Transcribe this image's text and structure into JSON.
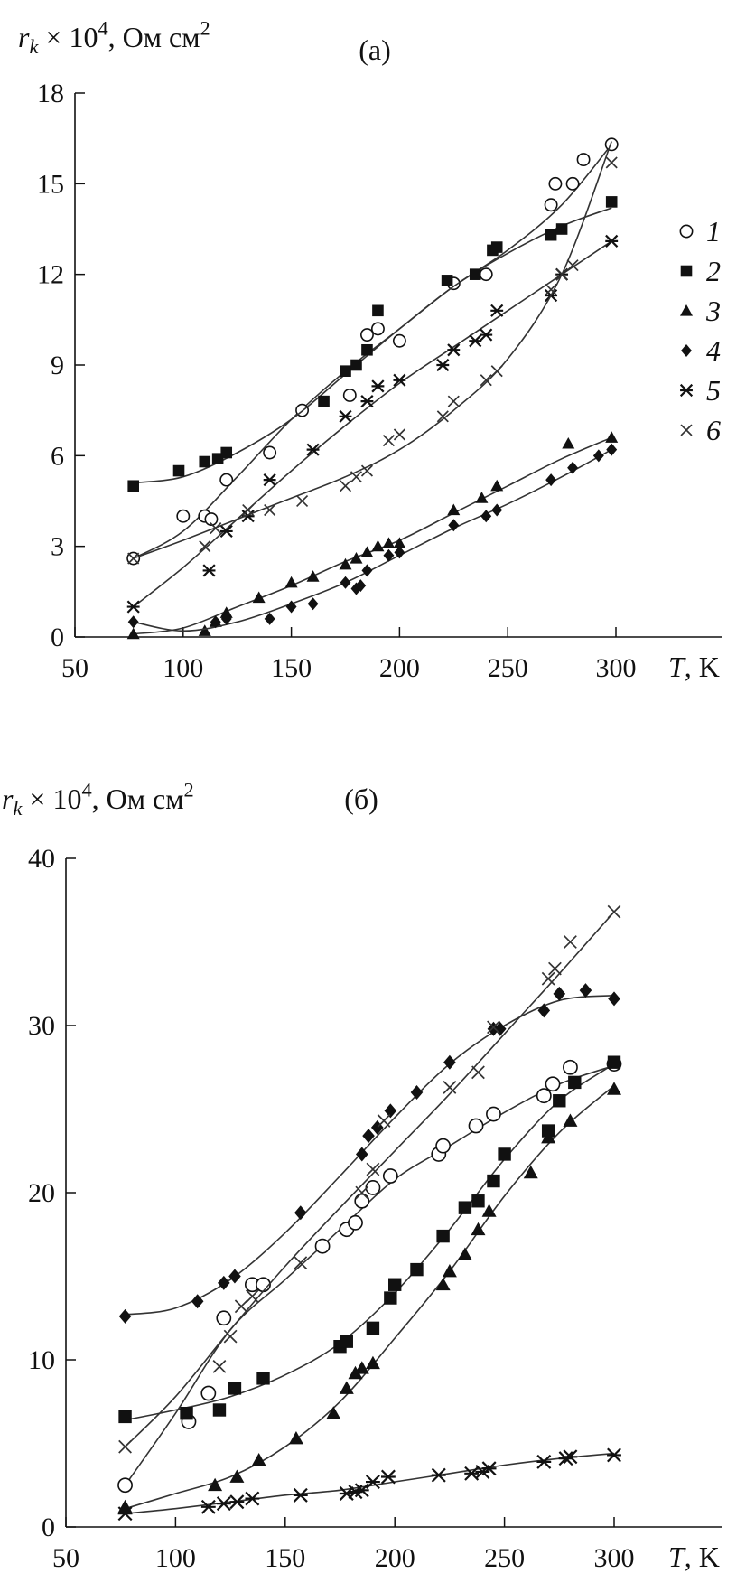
{
  "chart_data": [
    {
      "id": "a",
      "type": "scatter",
      "title": "(а)",
      "ylabel": "r_k × 10^4, Ом см^2",
      "ylabel_parts": {
        "var": "r",
        "sub": "k",
        "mid": " × 10",
        "sup": "4",
        "unit": ", Ом см",
        "unit_sup": "2"
      },
      "xlabel": "T, K",
      "xlabel_parts": {
        "var": "T",
        "rest": ", K"
      },
      "xlim": [
        50,
        350
      ],
      "ylim": [
        0,
        18
      ],
      "xticks": [
        50,
        100,
        150,
        200,
        250,
        300
      ],
      "yticks": [
        0,
        3,
        6,
        9,
        12,
        15,
        18
      ],
      "legend_position": "right",
      "series": [
        {
          "name": "1",
          "marker": "circle-open",
          "x": [
            77,
            100,
            110,
            113,
            120,
            140,
            155,
            177,
            185,
            190,
            200,
            225,
            240,
            270,
            272,
            280,
            285,
            298
          ],
          "y": [
            2.6,
            4.0,
            4.0,
            3.9,
            5.2,
            6.1,
            7.5,
            8.0,
            10.0,
            10.2,
            9.8,
            11.7,
            12.0,
            14.3,
            15.0,
            15.0,
            15.8,
            16.3
          ],
          "curve": [
            [
              77,
              2.6
            ],
            [
              100,
              3.5
            ],
            [
              125,
              5.3
            ],
            [
              150,
              7.2
            ],
            [
              175,
              8.8
            ],
            [
              200,
              10.2
            ],
            [
              225,
              11.6
            ],
            [
              250,
              12.8
            ],
            [
              275,
              14.3
            ],
            [
              298,
              16.3
            ]
          ]
        },
        {
          "name": "2",
          "marker": "square-filled",
          "x": [
            77,
            98,
            110,
            116,
            120,
            165,
            175,
            180,
            185,
            190,
            222,
            235,
            243,
            245,
            270,
            275,
            298
          ],
          "y": [
            5.0,
            5.5,
            5.8,
            5.9,
            6.1,
            7.8,
            8.8,
            9.0,
            9.5,
            10.8,
            11.8,
            12.0,
            12.8,
            12.9,
            13.3,
            13.5,
            14.4
          ],
          "curve": [
            [
              77,
              5.1
            ],
            [
              100,
              5.3
            ],
            [
              125,
              6.1
            ],
            [
              150,
              7.2
            ],
            [
              175,
              8.7
            ],
            [
              200,
              10.2
            ],
            [
              225,
              11.6
            ],
            [
              250,
              12.7
            ],
            [
              275,
              13.6
            ],
            [
              298,
              14.2
            ]
          ]
        },
        {
          "name": "3",
          "marker": "triangle-filled",
          "x": [
            77,
            110,
            115,
            120,
            135,
            150,
            160,
            175,
            180,
            185,
            190,
            195,
            200,
            225,
            238,
            245,
            278,
            298
          ],
          "y": [
            0.1,
            0.2,
            0.5,
            0.8,
            1.3,
            1.8,
            2.0,
            2.4,
            2.6,
            2.8,
            3.0,
            3.1,
            3.1,
            4.2,
            4.6,
            5.0,
            6.4,
            6.6
          ],
          "curve": [
            [
              77,
              0.1
            ],
            [
              100,
              0.3
            ],
            [
              125,
              1.0
            ],
            [
              150,
              1.7
            ],
            [
              175,
              2.5
            ],
            [
              200,
              3.2
            ],
            [
              225,
              4.1
            ],
            [
              250,
              5.0
            ],
            [
              275,
              5.9
            ],
            [
              298,
              6.6
            ]
          ]
        },
        {
          "name": "4",
          "marker": "diamond-filled",
          "x": [
            77,
            115,
            120,
            140,
            150,
            160,
            175,
            180,
            182,
            185,
            195,
            200,
            225,
            240,
            245,
            270,
            280,
            292,
            298
          ],
          "y": [
            0.5,
            0.5,
            0.6,
            0.6,
            1.0,
            1.1,
            1.8,
            1.6,
            1.7,
            2.2,
            2.7,
            2.8,
            3.7,
            4.0,
            4.2,
            5.2,
            5.6,
            6.0,
            6.2
          ],
          "curve": [
            [
              77,
              0.5
            ],
            [
              100,
              0.2
            ],
            [
              125,
              0.5
            ],
            [
              150,
              1.1
            ],
            [
              175,
              1.8
            ],
            [
              200,
              2.7
            ],
            [
              225,
              3.6
            ],
            [
              250,
              4.4
            ],
            [
              275,
              5.3
            ],
            [
              298,
              6.2
            ]
          ]
        },
        {
          "name": "5",
          "marker": "star",
          "x": [
            77,
            112,
            120,
            130,
            140,
            160,
            175,
            185,
            190,
            200,
            220,
            225,
            235,
            240,
            245,
            270,
            275,
            298
          ],
          "y": [
            1.0,
            2.2,
            3.5,
            4.0,
            5.2,
            6.2,
            7.3,
            7.8,
            8.3,
            8.5,
            9.0,
            9.5,
            9.8,
            10.0,
            10.8,
            11.3,
            12.0,
            13.1
          ],
          "curve": [
            [
              77,
              1.0
            ],
            [
              100,
              2.3
            ],
            [
              125,
              3.9
            ],
            [
              150,
              5.5
            ],
            [
              175,
              7.0
            ],
            [
              200,
              8.4
            ],
            [
              225,
              9.6
            ],
            [
              250,
              10.8
            ],
            [
              275,
              12.0
            ],
            [
              298,
              13.1
            ]
          ]
        },
        {
          "name": "6",
          "marker": "cross",
          "x": [
            77,
            110,
            115,
            130,
            140,
            155,
            175,
            180,
            185,
            195,
            200,
            220,
            225,
            240,
            245,
            270,
            275,
            280,
            298
          ],
          "y": [
            2.6,
            3.0,
            3.6,
            4.2,
            4.2,
            4.5,
            5.0,
            5.3,
            5.5,
            6.5,
            6.7,
            7.3,
            7.8,
            8.5,
            8.8,
            11.5,
            12.0,
            12.3,
            15.7
          ],
          "curve": [
            [
              77,
              2.6
            ],
            [
              100,
              3.2
            ],
            [
              125,
              3.9
            ],
            [
              150,
              4.6
            ],
            [
              175,
              5.3
            ],
            [
              200,
              6.2
            ],
            [
              225,
              7.5
            ],
            [
              250,
              9.2
            ],
            [
              275,
              12.0
            ],
            [
              298,
              16.4
            ]
          ]
        }
      ]
    },
    {
      "id": "b",
      "type": "scatter",
      "title": "(б)",
      "ylabel": "r_k × 10^4, Ом см^2",
      "ylabel_parts": {
        "var": "r",
        "sub": "k",
        "mid": " × 10",
        "sup": "4",
        "unit": ", Ом см",
        "unit_sup": "2"
      },
      "xlabel": "T, K",
      "xlabel_parts": {
        "var": "T",
        "rest": ", K"
      },
      "xlim": [
        50,
        350
      ],
      "ylim": [
        0,
        40
      ],
      "xticks": [
        50,
        100,
        150,
        200,
        250,
        300
      ],
      "yticks": [
        0,
        10,
        20,
        30,
        40
      ],
      "legend_position": "none",
      "series": [
        {
          "name": "1",
          "marker": "circle-open",
          "x": [
            77,
            106,
            115,
            122,
            135,
            140,
            167,
            178,
            182,
            185,
            190,
            198,
            220,
            222,
            237,
            245,
            268,
            272,
            280,
            300
          ],
          "y": [
            2.5,
            6.3,
            8.0,
            12.5,
            14.5,
            14.5,
            16.8,
            17.8,
            18.2,
            19.5,
            20.3,
            21.0,
            22.3,
            22.8,
            24.0,
            24.7,
            25.8,
            26.5,
            27.5,
            27.7
          ],
          "curve": [
            [
              77,
              2.5
            ],
            [
              100,
              6.8
            ],
            [
              125,
              11.8
            ],
            [
              150,
              14.8
            ],
            [
              175,
              17.8
            ],
            [
              200,
              20.8
            ],
            [
              225,
              22.8
            ],
            [
              250,
              24.8
            ],
            [
              275,
              26.5
            ],
            [
              300,
              27.6
            ]
          ]
        },
        {
          "name": "2",
          "marker": "square-filled",
          "x": [
            77,
            105,
            120,
            127,
            140,
            175,
            178,
            190,
            198,
            200,
            210,
            222,
            232,
            238,
            245,
            250,
            270,
            275,
            282,
            300
          ],
          "y": [
            6.6,
            6.8,
            7.0,
            8.3,
            8.9,
            10.8,
            11.1,
            11.9,
            13.7,
            14.5,
            15.4,
            17.4,
            19.1,
            19.5,
            20.7,
            22.3,
            23.7,
            25.5,
            26.6,
            27.8
          ],
          "curve": [
            [
              77,
              6.4
            ],
            [
              100,
              7.0
            ],
            [
              125,
              7.8
            ],
            [
              150,
              9.1
            ],
            [
              175,
              11.0
            ],
            [
              200,
              14.0
            ],
            [
              225,
              17.8
            ],
            [
              250,
              22.0
            ],
            [
              275,
              25.5
            ],
            [
              300,
              27.7
            ]
          ]
        },
        {
          "name": "3",
          "marker": "triangle-filled",
          "x": [
            77,
            118,
            128,
            138,
            155,
            172,
            178,
            182,
            185,
            190,
            222,
            225,
            232,
            238,
            243,
            262,
            270,
            280,
            300
          ],
          "y": [
            1.2,
            2.5,
            3.0,
            4.0,
            5.3,
            6.8,
            8.3,
            9.2,
            9.5,
            9.8,
            14.5,
            15.3,
            16.3,
            17.8,
            18.9,
            21.2,
            23.3,
            24.3,
            26.2
          ],
          "curve": [
            [
              77,
              1.1
            ],
            [
              100,
              2.0
            ],
            [
              125,
              3.0
            ],
            [
              150,
              4.8
            ],
            [
              175,
              7.5
            ],
            [
              200,
              11.3
            ],
            [
              225,
              15.3
            ],
            [
              250,
              19.8
            ],
            [
              275,
              23.6
            ],
            [
              300,
              26.4
            ]
          ]
        },
        {
          "name": "4",
          "marker": "diamond-filled",
          "x": [
            77,
            110,
            122,
            127,
            157,
            185,
            188,
            192,
            198,
            210,
            225,
            245,
            248,
            268,
            275,
            287,
            300
          ],
          "y": [
            12.6,
            13.5,
            14.6,
            15.0,
            18.8,
            22.3,
            23.4,
            23.9,
            24.9,
            26.0,
            27.8,
            29.8,
            29.8,
            30.9,
            31.9,
            32.1,
            31.6
          ],
          "curve": [
            [
              77,
              12.7
            ],
            [
              100,
              13.1
            ],
            [
              125,
              14.8
            ],
            [
              150,
              17.6
            ],
            [
              175,
              21.0
            ],
            [
              200,
              24.5
            ],
            [
              225,
              27.7
            ],
            [
              250,
              30.0
            ],
            [
              275,
              31.5
            ],
            [
              300,
              31.8
            ]
          ]
        },
        {
          "name": "5",
          "marker": "star",
          "x": [
            77,
            115,
            122,
            128,
            135,
            157,
            178,
            182,
            185,
            190,
            197,
            220,
            235,
            240,
            243,
            268,
            278,
            280,
            300
          ],
          "y": [
            0.8,
            1.2,
            1.4,
            1.5,
            1.7,
            1.9,
            2.0,
            2.1,
            2.2,
            2.7,
            3.0,
            3.1,
            3.2,
            3.3,
            3.5,
            3.9,
            4.1,
            4.2,
            4.3
          ],
          "curve": [
            [
              77,
              0.8
            ],
            [
              100,
              1.1
            ],
            [
              125,
              1.5
            ],
            [
              150,
              1.9
            ],
            [
              175,
              2.2
            ],
            [
              200,
              2.7
            ],
            [
              225,
              3.2
            ],
            [
              250,
              3.7
            ],
            [
              275,
              4.1
            ],
            [
              300,
              4.4
            ]
          ]
        },
        {
          "name": "6",
          "marker": "cross",
          "x": [
            77,
            120,
            125,
            130,
            135,
            157,
            185,
            190,
            195,
            225,
            238,
            245,
            270,
            273,
            280,
            300
          ],
          "y": [
            4.8,
            9.6,
            11.4,
            13.2,
            13.8,
            15.8,
            20.0,
            21.4,
            24.3,
            26.3,
            27.2,
            29.9,
            32.8,
            33.4,
            35.0,
            36.8
          ],
          "curve": [
            [
              77,
              4.8
            ],
            [
              100,
              7.8
            ],
            [
              125,
              11.8
            ],
            [
              150,
              15.6
            ],
            [
              175,
              19.1
            ],
            [
              200,
              22.5
            ],
            [
              225,
              25.9
            ],
            [
              250,
              29.5
            ],
            [
              275,
              33.1
            ],
            [
              300,
              36.8
            ]
          ]
        }
      ]
    }
  ],
  "legend": [
    {
      "label": "1",
      "marker": "circle-open"
    },
    {
      "label": "2",
      "marker": "square-filled"
    },
    {
      "label": "3",
      "marker": "triangle-filled"
    },
    {
      "label": "4",
      "marker": "diamond-filled"
    },
    {
      "label": "5",
      "marker": "star"
    },
    {
      "label": "6",
      "marker": "cross"
    }
  ]
}
